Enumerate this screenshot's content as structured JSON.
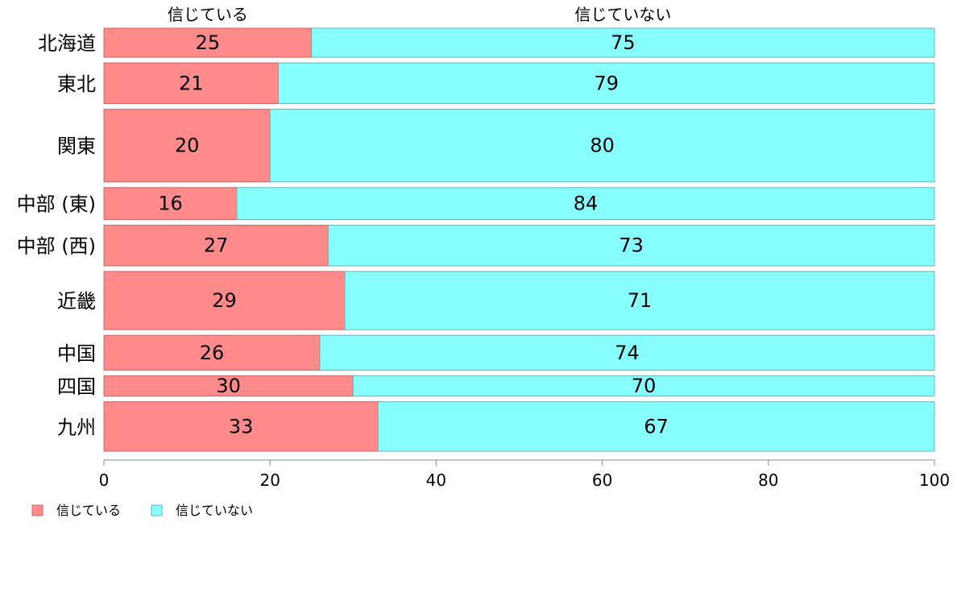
{
  "chart_data": {
    "type": "bar",
    "orientation": "horizontal",
    "stacked": true,
    "categories": [
      "北海道",
      "東北",
      "関東",
      "中部 (東)",
      "中部 (西)",
      "近畿",
      "中国",
      "四国",
      "九州"
    ],
    "series": [
      {
        "name": "信じている",
        "color": "#ff8a8a",
        "values": [
          25,
          21,
          20,
          16,
          27,
          29,
          26,
          30,
          33
        ]
      },
      {
        "name": "信じていない",
        "color": "#88ffff",
        "values": [
          75,
          79,
          80,
          84,
          73,
          71,
          74,
          70,
          67
        ]
      }
    ],
    "category_weights": [
      1.0,
      1.4,
      2.5,
      1.1,
      1.4,
      2.0,
      1.2,
      0.7,
      1.7
    ],
    "xlim": [
      0,
      100
    ],
    "xticks": [
      0,
      20,
      40,
      60,
      80,
      100
    ],
    "grid": false,
    "legend_position": "bottom-left",
    "top_labels_position": "above"
  }
}
